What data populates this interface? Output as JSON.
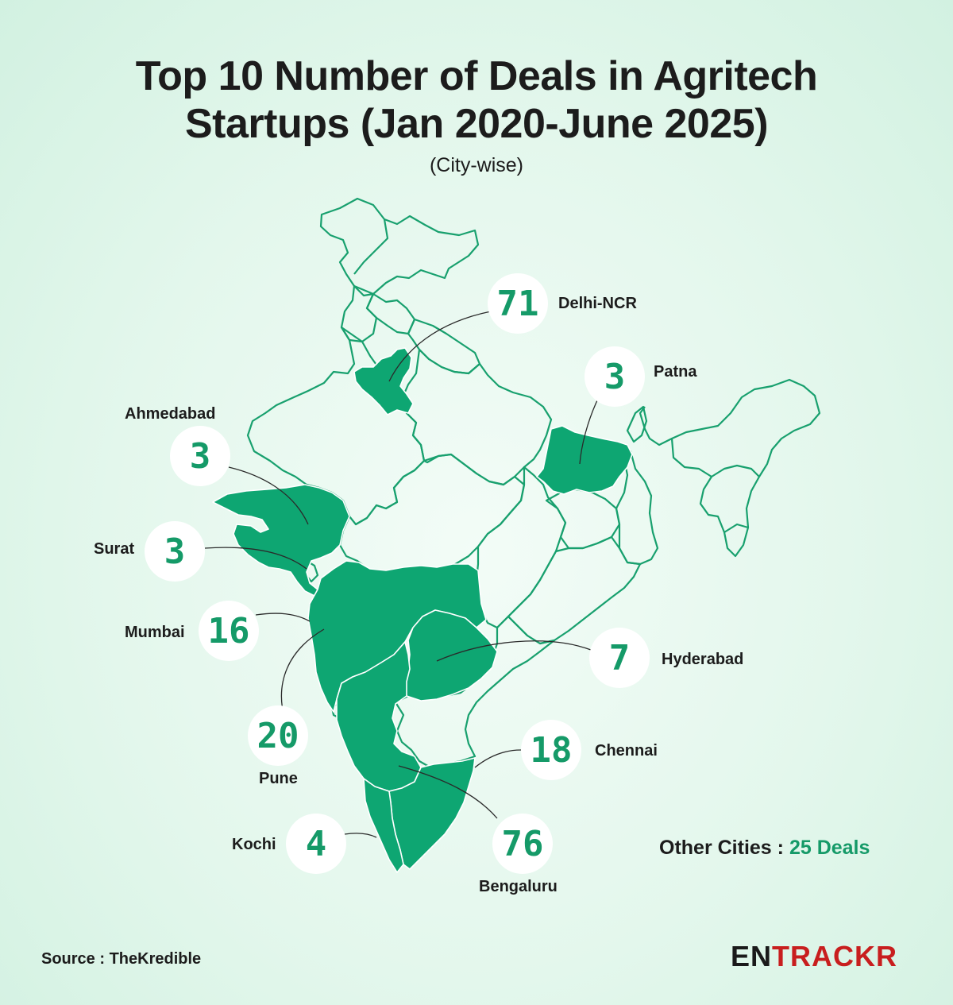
{
  "title_line1": "Top 10 Number of Deals in Agritech",
  "title_line2": "Startups (Jan 2020-June 2025)",
  "subtitle": "(City-wise)",
  "cities": [
    {
      "name": "Delhi-NCR",
      "deals": "71"
    },
    {
      "name": "Patna",
      "deals": "3"
    },
    {
      "name": "Ahmedabad",
      "deals": "3"
    },
    {
      "name": "Surat",
      "deals": "3"
    },
    {
      "name": "Mumbai",
      "deals": "16"
    },
    {
      "name": "Pune",
      "deals": "20"
    },
    {
      "name": "Hyderabad",
      "deals": "7"
    },
    {
      "name": "Chennai",
      "deals": "18"
    },
    {
      "name": "Kochi",
      "deals": "4"
    },
    {
      "name": "Bengaluru",
      "deals": "76"
    }
  ],
  "other_cities": {
    "label": "Other Cities :",
    "value": "25 Deals"
  },
  "source": "Source : TheKredible",
  "logo": {
    "part1": "EN",
    "part2": "TRACKR"
  },
  "colors": {
    "highlight": "#0ea672",
    "outline": "#18a06e",
    "text_accent": "#159a68",
    "logo_red": "#c81e1e"
  }
}
